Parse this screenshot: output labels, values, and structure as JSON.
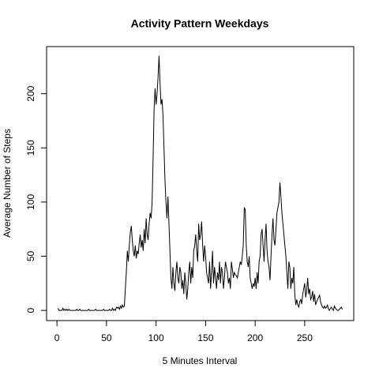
{
  "chart_data": {
    "type": "line",
    "title": "Activity Pattern Weekdays",
    "xlabel": "5 Minutes Interval",
    "ylabel": "Average Number of Steps",
    "color": "#000000",
    "x": [
      1,
      2,
      3,
      4,
      5,
      6,
      7,
      8,
      9,
      10,
      11,
      12,
      13,
      14,
      15,
      16,
      17,
      18,
      19,
      20,
      21,
      22,
      23,
      24,
      25,
      26,
      27,
      28,
      29,
      30,
      31,
      32,
      33,
      34,
      35,
      36,
      37,
      38,
      39,
      40,
      41,
      42,
      43,
      44,
      45,
      46,
      47,
      48,
      49,
      50,
      51,
      52,
      53,
      54,
      55,
      56,
      57,
      58,
      59,
      60,
      61,
      62,
      63,
      64,
      65,
      66,
      67,
      68,
      69,
      70,
      71,
      72,
      73,
      74,
      75,
      76,
      77,
      78,
      79,
      80,
      81,
      82,
      83,
      84,
      85,
      86,
      87,
      88,
      89,
      90,
      91,
      92,
      93,
      94,
      95,
      96,
      97,
      98,
      99,
      100,
      101,
      102,
      103,
      104,
      105,
      106,
      107,
      108,
      109,
      110,
      111,
      112,
      113,
      114,
      115,
      116,
      117,
      118,
      119,
      120,
      121,
      122,
      123,
      124,
      125,
      126,
      127,
      128,
      129,
      130,
      131,
      132,
      133,
      134,
      135,
      136,
      137,
      138,
      139,
      140,
      141,
      142,
      143,
      144,
      145,
      146,
      147,
      148,
      149,
      150,
      151,
      152,
      153,
      154,
      155,
      156,
      157,
      158,
      159,
      160,
      161,
      162,
      163,
      164,
      165,
      166,
      167,
      168,
      169,
      170,
      171,
      172,
      173,
      174,
      175,
      176,
      177,
      178,
      179,
      180,
      181,
      182,
      183,
      184,
      185,
      186,
      187,
      188,
      189,
      190,
      191,
      192,
      193,
      194,
      195,
      196,
      197,
      198,
      199,
      200,
      201,
      202,
      203,
      204,
      205,
      206,
      207,
      208,
      209,
      210,
      211,
      212,
      213,
      214,
      215,
      216,
      217,
      218,
      219,
      220,
      221,
      222,
      223,
      224,
      225,
      226,
      227,
      228,
      229,
      230,
      231,
      232,
      233,
      234,
      235,
      236,
      237,
      238,
      239,
      240,
      241,
      242,
      243,
      244,
      245,
      246,
      247,
      248,
      249,
      250,
      251,
      252,
      253,
      254,
      255,
      256,
      257,
      258,
      259,
      260,
      261,
      262,
      263,
      264,
      265,
      266,
      267,
      268,
      269,
      270,
      271,
      272,
      273,
      274,
      275,
      276,
      277,
      278,
      279,
      280,
      281,
      282,
      283,
      284,
      285,
      286,
      287,
      288
    ],
    "values": [
      2,
      0,
      0,
      0,
      0,
      2,
      0,
      1,
      0,
      1,
      0,
      1,
      0,
      0,
      0,
      0,
      0,
      0,
      0,
      1,
      0,
      0,
      1,
      0,
      0,
      0,
      0,
      0,
      0,
      0,
      0,
      1,
      0,
      0,
      0,
      0,
      0,
      0,
      1,
      0,
      0,
      0,
      0,
      0,
      0,
      0,
      1,
      0,
      0,
      0,
      0,
      0,
      1,
      0,
      0,
      2,
      0,
      1,
      0,
      3,
      2,
      3,
      1,
      4,
      2,
      5,
      3,
      4,
      20,
      35,
      55,
      45,
      60,
      72,
      78,
      65,
      55,
      50,
      60,
      48,
      55,
      52,
      62,
      70,
      58,
      65,
      55,
      75,
      62,
      85,
      70,
      65,
      80,
      90,
      85,
      100,
      140,
      185,
      205,
      190,
      200,
      215,
      235,
      210,
      190,
      195,
      180,
      150,
      120,
      100,
      85,
      105,
      80,
      55,
      30,
      20,
      40,
      25,
      18,
      35,
      45,
      30,
      25,
      40,
      35,
      20,
      28,
      15,
      35,
      25,
      10,
      20,
      35,
      45,
      25,
      40,
      30,
      55,
      60,
      70,
      55,
      45,
      80,
      65,
      70,
      82,
      60,
      45,
      60,
      50,
      35,
      30,
      25,
      45,
      20,
      35,
      55,
      25,
      40,
      30,
      20,
      35,
      28,
      45,
      25,
      40,
      35,
      20,
      30,
      45,
      40,
      35,
      25,
      30,
      20,
      45,
      38,
      30,
      35,
      33,
      32,
      30,
      35,
      40,
      45,
      42,
      50,
      60,
      95,
      93,
      60,
      45,
      40,
      50,
      30,
      25,
      20,
      25,
      22,
      30,
      20,
      35,
      25,
      45,
      50,
      70,
      75,
      60,
      45,
      65,
      80,
      55,
      45,
      40,
      28,
      50,
      70,
      85,
      65,
      60,
      75,
      90,
      95,
      100,
      118,
      105,
      90,
      80,
      70,
      60,
      50,
      35,
      20,
      45,
      40,
      20,
      30,
      25,
      40,
      15,
      5,
      10,
      5,
      3,
      8,
      10,
      6,
      15,
      20,
      25,
      12,
      18,
      30,
      15,
      20,
      10,
      12,
      18,
      8,
      15,
      5,
      8,
      10,
      12,
      14,
      8,
      5,
      3,
      2,
      4,
      2,
      3,
      5,
      1,
      0,
      2,
      3,
      1,
      0,
      4,
      2,
      1,
      0,
      0,
      1,
      2,
      3,
      1
    ],
    "xlim": [
      -10.48,
      299.48
    ],
    "xticks": [
      0,
      50,
      100,
      150,
      200,
      250
    ],
    "ylim": [
      -9.4,
      243.5
    ],
    "yticks": [
      0,
      50,
      100,
      150,
      200
    ]
  }
}
